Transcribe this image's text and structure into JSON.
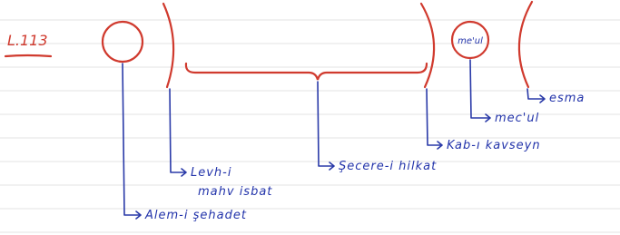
{
  "page_label": "L.113",
  "circle_label": "me'ul",
  "labels": {
    "esma": "esma",
    "meçul": "mec'ul",
    "kab": "Kab-ı kavseyn",
    "secere": "Şecere-i hilkat",
    "levh_line1": "Levh-i",
    "levh_line2": "mahv isbat",
    "alem": "Alem-i şehadet"
  }
}
